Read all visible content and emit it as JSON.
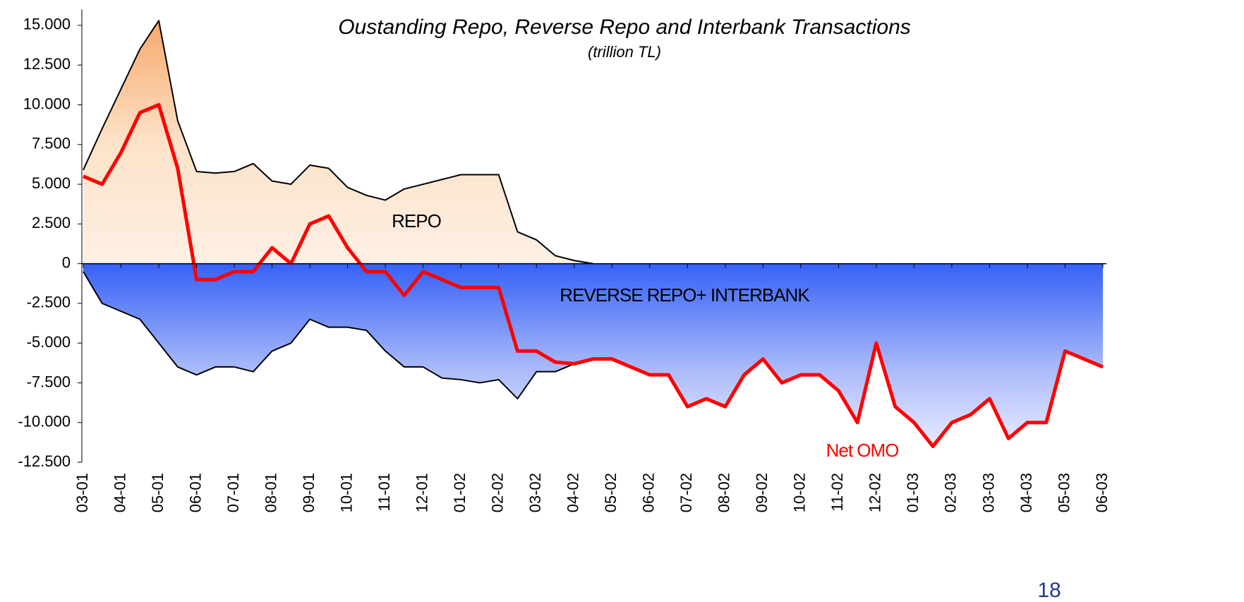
{
  "chart_data": {
    "type": "area_line",
    "title": "Oustanding Repo, Reverse Repo and Interbank Transactions",
    "subtitle": "(trillion TL)",
    "page_number": "18",
    "categories": [
      "03-01",
      null,
      "04-01",
      null,
      "05-01",
      null,
      "06-01",
      null,
      "07-01",
      null,
      "08-01",
      null,
      "09-01",
      null,
      "10-01",
      null,
      "11-01",
      null,
      "12-01",
      null,
      "01-02",
      null,
      "02-02",
      null,
      "03-02",
      null,
      "04-02",
      null,
      "05-02",
      null,
      "06-02",
      null,
      "07-02",
      null,
      "08-02",
      null,
      "09-02",
      null,
      "10-02",
      null,
      "11-02",
      null,
      "12-02",
      null,
      "01-03",
      null,
      "02-03",
      null,
      "03-03",
      null,
      "04-03",
      null,
      "05-03",
      null,
      "06-03"
    ],
    "series": [
      {
        "name": "REPO",
        "color": "#000000",
        "values": [
          5900,
          8500,
          11000,
          13500,
          15300,
          9000,
          5800,
          5700,
          5800,
          6300,
          5200,
          5000,
          6200,
          6000,
          4800,
          4300,
          4000,
          4700,
          5000,
          5300,
          5600,
          5600,
          5600,
          2000,
          1500,
          500,
          200,
          0,
          null,
          null,
          null,
          null,
          null,
          null,
          null,
          null,
          null,
          null,
          null,
          null,
          null,
          null,
          null,
          null,
          null,
          null,
          null,
          null,
          null,
          null,
          null,
          null,
          null,
          null,
          null
        ]
      },
      {
        "name": "REVERSE REPO+ INTERBANK",
        "color": "#000000",
        "values": [
          -500,
          -2500,
          -3000,
          -3500,
          -5000,
          -6500,
          -7000,
          -6500,
          -6500,
          -6800,
          -5500,
          -5000,
          -3500,
          -4000,
          -4000,
          -4200,
          -5500,
          -6500,
          -6500,
          -7200,
          -7300,
          -7500,
          -7300,
          -8500,
          -6800,
          -6800,
          -6300,
          -6000,
          -6000,
          -6500,
          -7000,
          -7000,
          -9000,
          -8500,
          -9000,
          -7000,
          -6000,
          -7500,
          -7000,
          -7000,
          -8000,
          -10000,
          -5000,
          -9000,
          -10000,
          -11500,
          -10000,
          -9500,
          -8500,
          -11000,
          -10000,
          -10000,
          -5500,
          -6000,
          -6500
        ]
      },
      {
        "name": "Net OMO",
        "color": "#ff0000",
        "values": [
          5500,
          5000,
          7000,
          9500,
          10000,
          6000,
          -1000,
          -1000,
          -500,
          -500,
          1000,
          0,
          2500,
          3000,
          1000,
          -500,
          -500,
          -2000,
          -500,
          -1000,
          -1500,
          -1500,
          -1500,
          -5500,
          -5500,
          -6200,
          -6300,
          -6000,
          -6000,
          -6500,
          -7000,
          -7000,
          -9000,
          -8500,
          -9000,
          -7000,
          -6000,
          -7500,
          -7000,
          -7000,
          -8000,
          -10000,
          -5000,
          -9000,
          -10000,
          -11500,
          -10000,
          -9500,
          -8500,
          -11000,
          -10000,
          -10000,
          -5500,
          -6000,
          -6500
        ]
      }
    ],
    "ylim": [
      -12500,
      16000
    ],
    "yticks": [
      {
        "value": 15000,
        "label": "15.000"
      },
      {
        "value": 12500,
        "label": "12.500"
      },
      {
        "value": 10000,
        "label": "10.000"
      },
      {
        "value": 7500,
        "label": "7.500"
      },
      {
        "value": 5000,
        "label": "5.000"
      },
      {
        "value": 2500,
        "label": "2.500"
      },
      0,
      {
        "value": -2500,
        "label": "-2.500"
      },
      {
        "value": -5000,
        "label": "-5.000"
      },
      {
        "value": -7500,
        "label": "-7.500"
      },
      {
        "value": -10000,
        "label": "-10.000"
      },
      {
        "value": -12500,
        "label": "-12.500"
      }
    ]
  }
}
